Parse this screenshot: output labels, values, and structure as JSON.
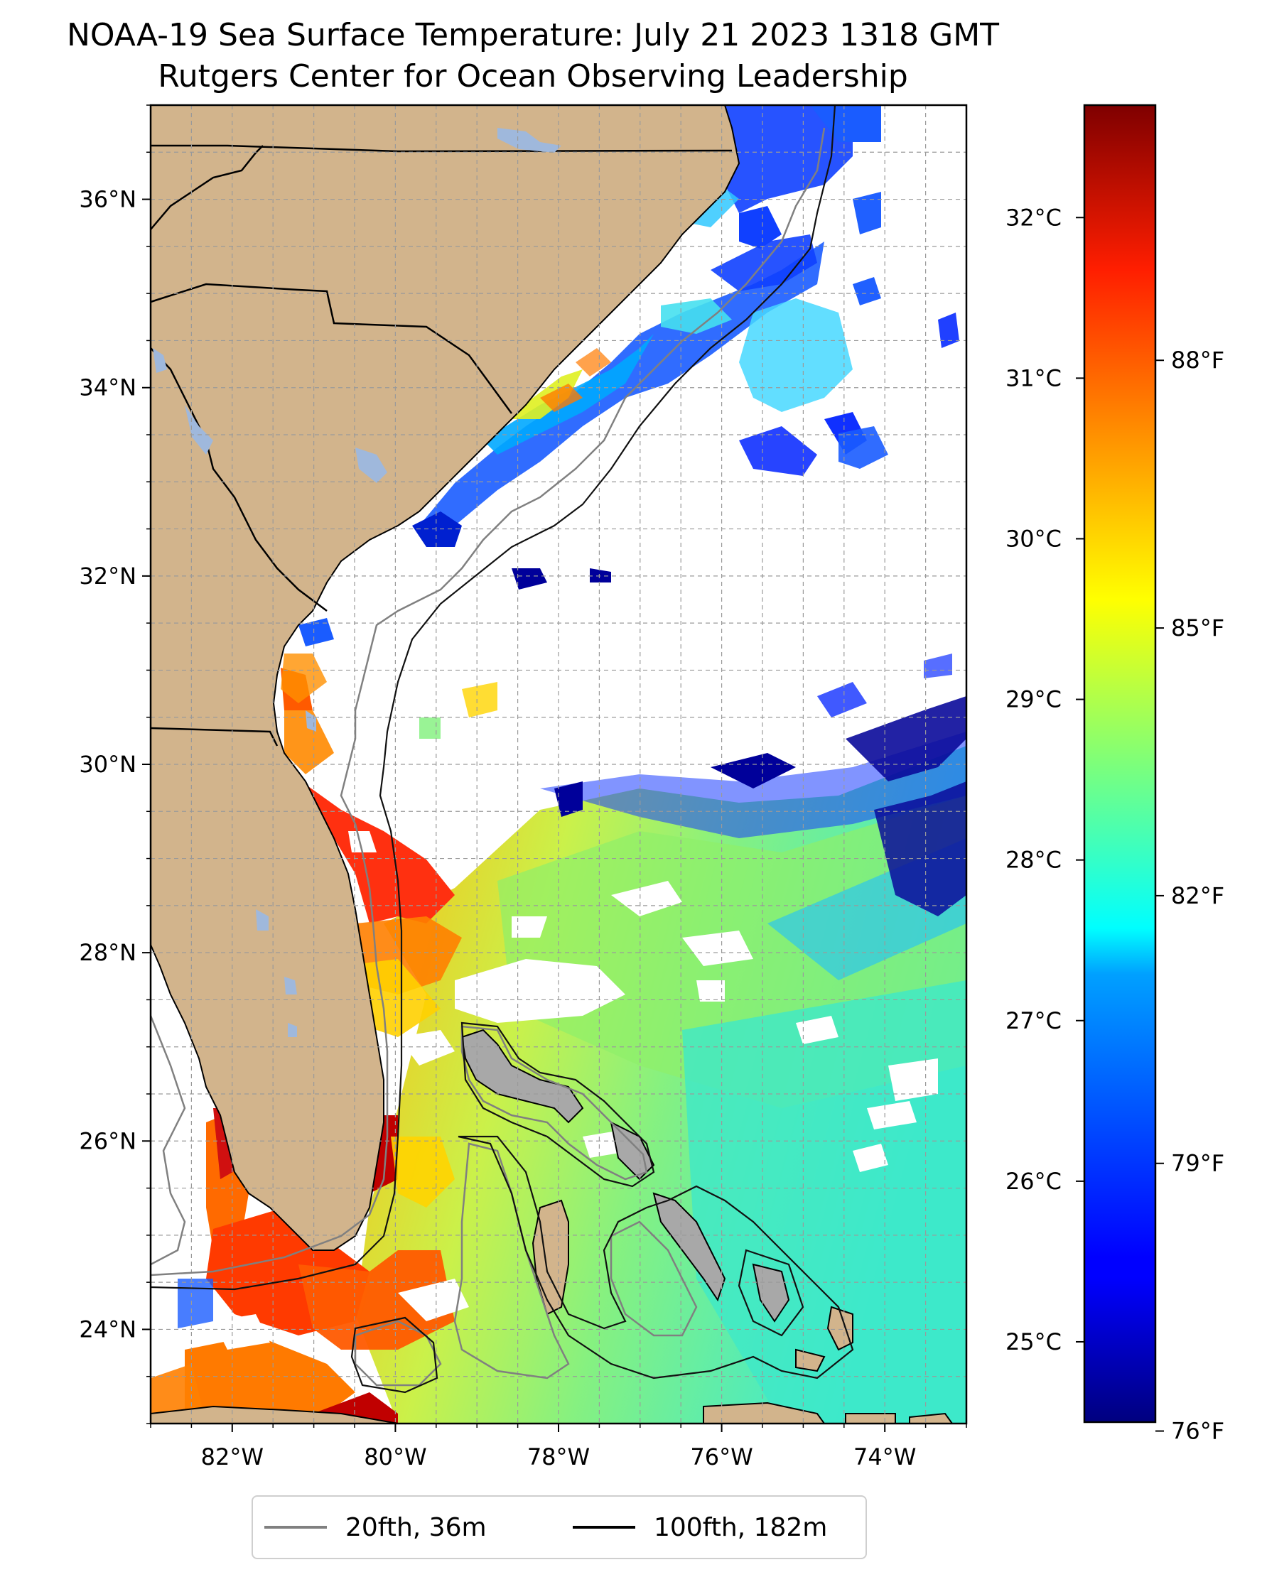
{
  "title": "NOAA-19 Sea Surface Temperature: July 21 2023 1318 GMT",
  "subtitle": "Rutgers Center for Ocean Observing Leadership",
  "map": {
    "lon_range": [
      -83.0,
      -73.0
    ],
    "lat_range": [
      23.0,
      37.0
    ],
    "grid": true,
    "lat_ticks": [
      {
        "value": 24,
        "label": "24°N"
      },
      {
        "value": 26,
        "label": "26°N"
      },
      {
        "value": 28,
        "label": "28°N"
      },
      {
        "value": 30,
        "label": "30°N"
      },
      {
        "value": 32,
        "label": "32°N"
      },
      {
        "value": 34,
        "label": "34°N"
      },
      {
        "value": 36,
        "label": "36°N"
      }
    ],
    "lon_ticks": [
      {
        "value": -82,
        "label": "82°W"
      },
      {
        "value": -80,
        "label": "80°W"
      },
      {
        "value": -78,
        "label": "78°W"
      },
      {
        "value": -76,
        "label": "76°W"
      },
      {
        "value": -74,
        "label": "74°W"
      }
    ],
    "colors": {
      "land": "#d2b48c",
      "lakes": "#9fb8dc",
      "clouds_no_data": "#ffffff",
      "contour_20fth": "#808080",
      "contour_100fth": "#000000"
    }
  },
  "colorbar": {
    "colormap": "jet",
    "range_c": [
      24.5,
      32.7
    ],
    "celsius_ticks": [
      {
        "value": 25,
        "label": "25°C"
      },
      {
        "value": 26,
        "label": "26°C"
      },
      {
        "value": 27,
        "label": "27°C"
      },
      {
        "value": 28,
        "label": "28°C"
      },
      {
        "value": 29,
        "label": "29°C"
      },
      {
        "value": 30,
        "label": "30°C"
      },
      {
        "value": 31,
        "label": "31°C"
      },
      {
        "value": 32,
        "label": "32°C"
      }
    ],
    "fahrenheit_ticks": [
      {
        "value": 76,
        "label": "76°F"
      },
      {
        "value": 79,
        "label": "79°F"
      },
      {
        "value": 82,
        "label": "82°F"
      },
      {
        "value": 85,
        "label": "85°F"
      },
      {
        "value": 88,
        "label": "88°F"
      }
    ]
  },
  "legend": {
    "items": [
      {
        "label": "20fth, 36m",
        "color": "#808080"
      },
      {
        "label": "100fth, 182m",
        "color": "#000000"
      }
    ]
  }
}
